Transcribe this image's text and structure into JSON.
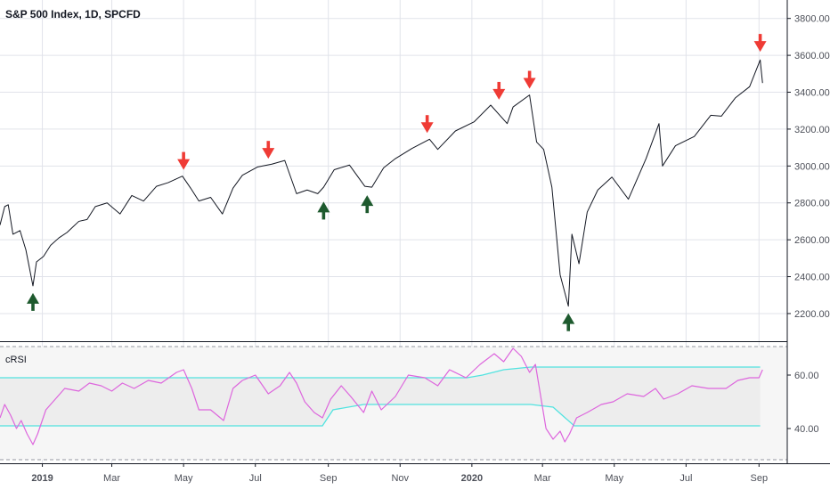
{
  "header": {
    "title": "S&P 500 Index, 1D, SPCFD"
  },
  "indicator": {
    "title": "cRSI"
  },
  "colors": {
    "price_line": "#131722",
    "sell_arrow": "#ef3b35",
    "buy_arrow": "#1e5a2e",
    "crsi_line": "#dd66dd",
    "band_line": "#52e3e0",
    "band_fill": "#ededed",
    "grid": "#e1e3ea",
    "axis_text": "#4c4f58"
  },
  "chart_data": [
    {
      "type": "line",
      "title": "S&P 500 Index, 1D, SPCFD",
      "ylim": [
        2050,
        3900
      ],
      "yticks": [
        "3800.00",
        "3600.00",
        "3400.00",
        "3200.00",
        "3000.00",
        "2800.00",
        "2600.00",
        "2400.00",
        "2200.00"
      ],
      "ytick_values": [
        3800,
        3600,
        3400,
        3200,
        3000,
        2800,
        2600,
        2400,
        2200
      ],
      "xlim": [
        "2018-11-26",
        "2020-09-25"
      ],
      "xticks": [
        "2019",
        "Mar",
        "May",
        "Jul",
        "Sep",
        "Nov",
        "2020",
        "Mar",
        "May",
        "Jul",
        "Sep"
      ],
      "xtick_dates": [
        "2019-01-01",
        "2019-03-01",
        "2019-05-01",
        "2019-07-01",
        "2019-09-01",
        "2019-11-01",
        "2020-01-01",
        "2020-03-01",
        "2020-05-01",
        "2020-07-01",
        "2020-09-01"
      ],
      "bold_xticks": [
        "2019",
        "2020"
      ],
      "series": [
        {
          "x": [
            "2018-11-26",
            "2018-11-30",
            "2018-12-03",
            "2018-12-07",
            "2018-12-13",
            "2018-12-18",
            "2018-12-24",
            "2018-12-27",
            "2019-01-02",
            "2019-01-08",
            "2019-01-15",
            "2019-01-22",
            "2019-02-01",
            "2019-02-08",
            "2019-02-15",
            "2019-02-25",
            "2019-03-08",
            "2019-03-18",
            "2019-03-28",
            "2019-04-08",
            "2019-04-18",
            "2019-04-30",
            "2019-05-07",
            "2019-05-14",
            "2019-05-24",
            "2019-06-03",
            "2019-06-12",
            "2019-06-20",
            "2019-07-03",
            "2019-07-15",
            "2019-07-26",
            "2019-08-05",
            "2019-08-14",
            "2019-08-23",
            "2019-08-28",
            "2019-09-06",
            "2019-09-19",
            "2019-10-02",
            "2019-10-08",
            "2019-10-18",
            "2019-10-28",
            "2019-11-11",
            "2019-11-26",
            "2019-12-03",
            "2019-12-18",
            "2020-01-03",
            "2020-01-17",
            "2020-01-31",
            "2020-02-05",
            "2020-02-19",
            "2020-02-25",
            "2020-03-02",
            "2020-03-09",
            "2020-03-16",
            "2020-03-23",
            "2020-03-26",
            "2020-04-01",
            "2020-04-08",
            "2020-04-17",
            "2020-04-29",
            "2020-05-13",
            "2020-05-28",
            "2020-06-08",
            "2020-06-11",
            "2020-06-22",
            "2020-07-08",
            "2020-07-22",
            "2020-07-31",
            "2020-08-12",
            "2020-08-24",
            "2020-09-02",
            "2020-09-04"
          ],
          "y": [
            2680,
            2780,
            2790,
            2630,
            2650,
            2545,
            2350,
            2480,
            2510,
            2570,
            2610,
            2640,
            2700,
            2710,
            2780,
            2800,
            2740,
            2840,
            2810,
            2890,
            2910,
            2945,
            2880,
            2810,
            2830,
            2740,
            2880,
            2950,
            2995,
            3010,
            3030,
            2850,
            2870,
            2850,
            2885,
            2980,
            3005,
            2890,
            2885,
            2990,
            3040,
            3095,
            3145,
            3090,
            3190,
            3240,
            3330,
            3230,
            3320,
            3385,
            3130,
            3090,
            2885,
            2410,
            2240,
            2630,
            2470,
            2750,
            2870,
            2940,
            2820,
            3040,
            3230,
            3000,
            3110,
            3160,
            3275,
            3270,
            3370,
            3430,
            3575,
            3450
          ]
        }
      ],
      "annotations": {
        "sell_arrows": [
          {
            "x": "2019-05-01",
            "y": 2960
          },
          {
            "x": "2019-07-12",
            "y": 3020
          },
          {
            "x": "2019-11-24",
            "y": 3160
          },
          {
            "x": "2020-01-24",
            "y": 3340
          },
          {
            "x": "2020-02-19",
            "y": 3400
          },
          {
            "x": "2020-09-02",
            "y": 3600
          }
        ],
        "buy_arrows": [
          {
            "x": "2018-12-24",
            "y": 2350
          },
          {
            "x": "2019-08-28",
            "y": 2845
          },
          {
            "x": "2019-10-04",
            "y": 2880
          },
          {
            "x": "2020-03-23",
            "y": 2240
          }
        ]
      }
    },
    {
      "type": "line",
      "title": "cRSI",
      "ylim": [
        27,
        72
      ],
      "yticks": [
        "60.00",
        "40.00"
      ],
      "ytick_values": [
        60,
        40
      ],
      "series": [
        {
          "name": "cRSI",
          "x": [
            "2018-11-26",
            "2018-11-30",
            "2018-12-05",
            "2018-12-10",
            "2018-12-14",
            "2018-12-19",
            "2018-12-24",
            "2018-12-28",
            "2019-01-04",
            "2019-01-12",
            "2019-01-20",
            "2019-02-01",
            "2019-02-10",
            "2019-02-20",
            "2019-03-01",
            "2019-03-10",
            "2019-03-20",
            "2019-04-01",
            "2019-04-12",
            "2019-04-25",
            "2019-05-01",
            "2019-05-08",
            "2019-05-14",
            "2019-05-24",
            "2019-06-04",
            "2019-06-12",
            "2019-06-20",
            "2019-07-01",
            "2019-07-12",
            "2019-07-22",
            "2019-07-30",
            "2019-08-05",
            "2019-08-12",
            "2019-08-20",
            "2019-08-27",
            "2019-09-03",
            "2019-09-12",
            "2019-09-20",
            "2019-10-01",
            "2019-10-08",
            "2019-10-16",
            "2019-10-28",
            "2019-11-08",
            "2019-11-22",
            "2019-12-03",
            "2019-12-13",
            "2019-12-27",
            "2020-01-08",
            "2020-01-20",
            "2020-01-28",
            "2020-02-05",
            "2020-02-12",
            "2020-02-19",
            "2020-02-24",
            "2020-02-27",
            "2020-03-04",
            "2020-03-10",
            "2020-03-16",
            "2020-03-20",
            "2020-03-24",
            "2020-03-30",
            "2020-04-08",
            "2020-04-20",
            "2020-04-30",
            "2020-05-12",
            "2020-05-26",
            "2020-06-05",
            "2020-06-12",
            "2020-06-24",
            "2020-07-06",
            "2020-07-20",
            "2020-08-04",
            "2020-08-14",
            "2020-08-24",
            "2020-09-01",
            "2020-09-04"
          ],
          "y": [
            44,
            49,
            45,
            40,
            43,
            38,
            34,
            38,
            47,
            51,
            55,
            54,
            57,
            56,
            54,
            57,
            55,
            58,
            57,
            61,
            62,
            55,
            47,
            47,
            43,
            55,
            58,
            60,
            53,
            56,
            61,
            57,
            50,
            46,
            44,
            51,
            56,
            52,
            46,
            54,
            47,
            52,
            60,
            59,
            56,
            62,
            59,
            64,
            68,
            65,
            70,
            67,
            61,
            64,
            56,
            40,
            36,
            39,
            35,
            38,
            44,
            46,
            49,
            50,
            53,
            52,
            55,
            51,
            53,
            56,
            55,
            55,
            58,
            59,
            59,
            62
          ]
        },
        {
          "name": "upper band",
          "x": [
            "2018-11-26",
            "2019-12-28",
            "2020-01-10",
            "2020-01-28",
            "2020-02-20",
            "2020-09-02"
          ],
          "y": [
            59,
            59,
            60,
            62,
            63,
            63
          ]
        },
        {
          "name": "lower band",
          "x": [
            "2018-11-26",
            "2019-08-27",
            "2019-09-05",
            "2019-10-01",
            "2020-02-20",
            "2020-03-10",
            "2020-03-28",
            "2020-09-02"
          ],
          "y": [
            41,
            41,
            47,
            49,
            49,
            48,
            41,
            41
          ]
        }
      ]
    }
  ]
}
